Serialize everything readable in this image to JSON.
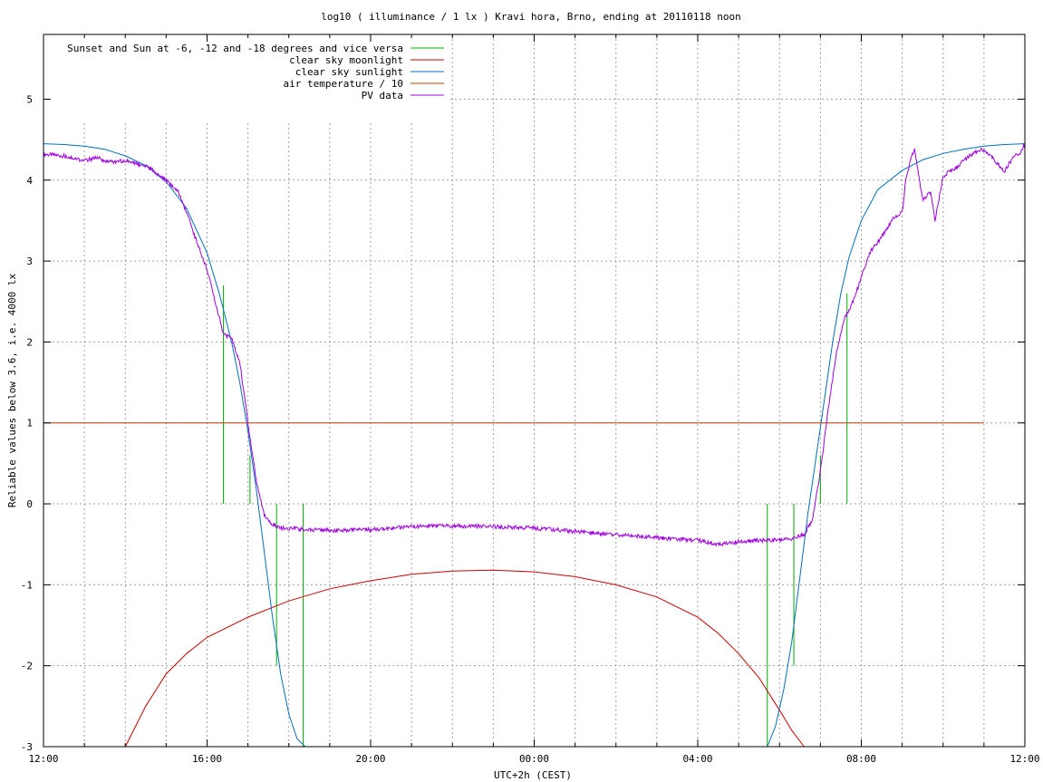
{
  "chart_data": {
    "type": "line",
    "title": "log10 ( illuminance / 1 lx ) Kravi hora, Brno, ending at 20110118 noon",
    "xlabel": "UTC+2h (CEST)",
    "ylabel": "Reliable values below 3.6, i.e. 4000 lx",
    "xlim": [
      0,
      24
    ],
    "ylim": [
      -3,
      5.8
    ],
    "x_ticks": [
      {
        "value": 0,
        "label": "12:00"
      },
      {
        "value": 4,
        "label": "16:00"
      },
      {
        "value": 8,
        "label": "20:00"
      },
      {
        "value": 12,
        "label": "00:00"
      },
      {
        "value": 16,
        "label": "04:00"
      },
      {
        "value": 20,
        "label": "08:00"
      },
      {
        "value": 24,
        "label": "12:00"
      }
    ],
    "y_ticks": [
      {
        "value": -3,
        "label": "-3"
      },
      {
        "value": -2,
        "label": "-2"
      },
      {
        "value": -1,
        "label": "-1"
      },
      {
        "value": 0,
        "label": "0"
      },
      {
        "value": 1,
        "label": "1"
      },
      {
        "value": 2,
        "label": "2"
      },
      {
        "value": 3,
        "label": "3"
      },
      {
        "value": 4,
        "label": "4"
      },
      {
        "value": 5,
        "label": "5"
      }
    ],
    "grid": true,
    "legend_position": "top-left",
    "series": [
      {
        "name": "Sunset and Sun at -6, -12 and -18 degrees and vice versa",
        "color": "#00b000",
        "kind": "vlines",
        "segments": [
          {
            "x": 4.4,
            "y0": 0,
            "y1": 2.7
          },
          {
            "x": 5.05,
            "y0": 0,
            "y1": 0.6
          },
          {
            "x": 5.7,
            "y0": 0,
            "y1": -2.0
          },
          {
            "x": 6.35,
            "y0": 0,
            "y1": -3.0
          },
          {
            "x": 17.7,
            "y0": 0,
            "y1": -3.0
          },
          {
            "x": 18.35,
            "y0": 0,
            "y1": -2.0
          },
          {
            "x": 19.0,
            "y0": 0,
            "y1": 0.6
          },
          {
            "x": 19.65,
            "y0": 0,
            "y1": 2.6
          }
        ]
      },
      {
        "name": "clear sky moonlight",
        "color": "#d00000",
        "kind": "line",
        "x": [
          2.0,
          2.5,
          3.0,
          3.5,
          4.0,
          5.0,
          6.0,
          7.0,
          8.0,
          9.0,
          10.0,
          11.0,
          12.0,
          13.0,
          14.0,
          15.0,
          16.0,
          16.5,
          17.0,
          17.5,
          18.0,
          18.3,
          18.6
        ],
        "y": [
          -3.0,
          -2.5,
          -2.1,
          -1.85,
          -1.65,
          -1.4,
          -1.2,
          -1.05,
          -0.95,
          -0.87,
          -0.83,
          -0.82,
          -0.84,
          -0.9,
          -1.0,
          -1.15,
          -1.4,
          -1.6,
          -1.85,
          -2.15,
          -2.55,
          -2.8,
          -3.0
        ]
      },
      {
        "name": "clear sky sunlight",
        "color": "#0070c0",
        "kind": "line",
        "x": [
          0.0,
          0.5,
          1.0,
          1.5,
          2.0,
          2.5,
          3.0,
          3.5,
          4.0,
          4.3,
          4.6,
          4.8,
          5.0,
          5.2,
          5.4,
          5.6,
          5.8,
          6.0,
          6.2,
          6.4,
          17.7,
          17.9,
          18.1,
          18.3,
          18.5,
          18.7,
          18.9,
          19.1,
          19.3,
          19.5,
          19.7,
          20.0,
          20.4,
          21.0,
          21.5,
          22.0,
          22.5,
          23.0,
          23.5,
          24.0
        ],
        "y": [
          4.45,
          4.44,
          4.42,
          4.38,
          4.3,
          4.18,
          3.98,
          3.65,
          3.1,
          2.6,
          2.0,
          1.5,
          0.9,
          0.2,
          -0.6,
          -1.4,
          -2.1,
          -2.6,
          -2.9,
          -3.0,
          -3.0,
          -2.75,
          -2.3,
          -1.7,
          -0.9,
          -0.1,
          0.6,
          1.3,
          2.0,
          2.6,
          3.05,
          3.5,
          3.88,
          4.12,
          4.25,
          4.33,
          4.38,
          4.42,
          4.44,
          4.45
        ]
      },
      {
        "name": "air temperature / 10",
        "color": "#c04000",
        "kind": "line",
        "x": [
          0.0,
          23.0
        ],
        "y": [
          1.0,
          1.0
        ]
      },
      {
        "name": "PV data",
        "color": "#a000e0",
        "kind": "line",
        "x": [
          0.0,
          0.5,
          1.0,
          1.3,
          1.6,
          2.0,
          2.3,
          2.6,
          3.0,
          3.3,
          3.5,
          3.7,
          4.0,
          4.2,
          4.4,
          4.6,
          4.8,
          5.0,
          5.2,
          5.4,
          5.6,
          5.8,
          6.0,
          6.5,
          7.0,
          8.0,
          9.0,
          10.0,
          11.0,
          12.0,
          13.0,
          14.0,
          15.0,
          16.0,
          16.5,
          17.0,
          17.5,
          18.0,
          18.3,
          18.6,
          18.8,
          19.0,
          19.2,
          19.4,
          19.6,
          19.8,
          20.0,
          20.2,
          20.5,
          20.8,
          21.0,
          21.1,
          21.3,
          21.5,
          21.7,
          21.8,
          22.0,
          22.3,
          22.6,
          22.8,
          23.0,
          23.2,
          23.5,
          23.7,
          23.9,
          24.0
        ],
        "y": [
          4.32,
          4.3,
          4.24,
          4.28,
          4.22,
          4.24,
          4.2,
          4.15,
          4.0,
          3.85,
          3.6,
          3.3,
          2.9,
          2.5,
          2.1,
          2.05,
          1.75,
          1.0,
          0.3,
          -0.15,
          -0.25,
          -0.3,
          -0.3,
          -0.32,
          -0.33,
          -0.32,
          -0.28,
          -0.27,
          -0.28,
          -0.3,
          -0.34,
          -0.38,
          -0.42,
          -0.45,
          -0.5,
          -0.47,
          -0.45,
          -0.45,
          -0.43,
          -0.38,
          -0.2,
          0.4,
          1.2,
          1.9,
          2.3,
          2.5,
          2.8,
          3.1,
          3.3,
          3.55,
          3.6,
          4.05,
          4.4,
          3.75,
          3.85,
          3.5,
          4.05,
          4.15,
          4.28,
          4.35,
          4.38,
          4.28,
          4.1,
          4.28,
          4.35,
          4.45
        ]
      }
    ]
  }
}
